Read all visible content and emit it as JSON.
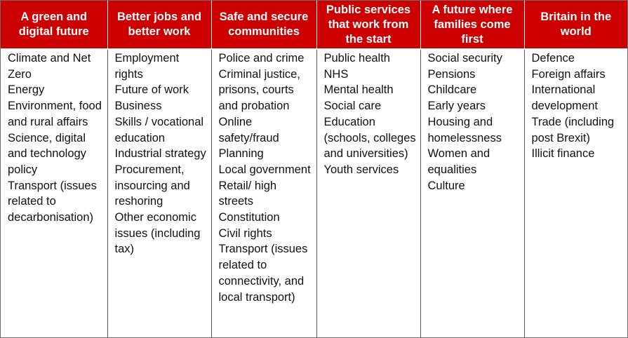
{
  "columns": [
    {
      "heading": "A green and digital future",
      "items": [
        "Climate and Net Zero",
        "Energy",
        "Environment, food and rural affairs",
        "Science, digital and technology policy",
        "Transport (issues related to decarbonisation)"
      ]
    },
    {
      "heading": "Better jobs and better work",
      "items": [
        "Employment rights",
        "Future of work",
        "Business",
        "Skills / vocational education",
        "Industrial strategy",
        "Procurement, insourcing and reshoring",
        "Other economic issues (including tax)"
      ]
    },
    {
      "heading": "Safe and secure communities",
      "items": [
        "Police and crime",
        "Criminal justice, prisons, courts and probation",
        "Online safety/fraud",
        "Planning",
        "Local government",
        "Retail/ high streets",
        "Constitution",
        "Civil rights",
        "Transport (issues related to connectivity, and local transport)"
      ]
    },
    {
      "heading": "Public services that work from the start",
      "items": [
        "Public health",
        "NHS",
        "Mental health",
        "Social care",
        "Education (schools, colleges and universities)",
        "Youth services"
      ]
    },
    {
      "heading": "A future where families come first",
      "items": [
        "Social security",
        "Pensions",
        "Childcare",
        "Early years",
        "Housing and homelessness",
        "Women and equalities",
        "Culture"
      ]
    },
    {
      "heading": "Britain in the world",
      "items": [
        "Defence",
        "Foreign affairs",
        "International development",
        "Trade (including post Brexit)",
        "Illicit finance"
      ]
    }
  ],
  "colors": {
    "header_background": "#cc0000",
    "header_text": "#ffffff",
    "body_text": "#111111",
    "grid_lines": "#5a5a5a"
  }
}
